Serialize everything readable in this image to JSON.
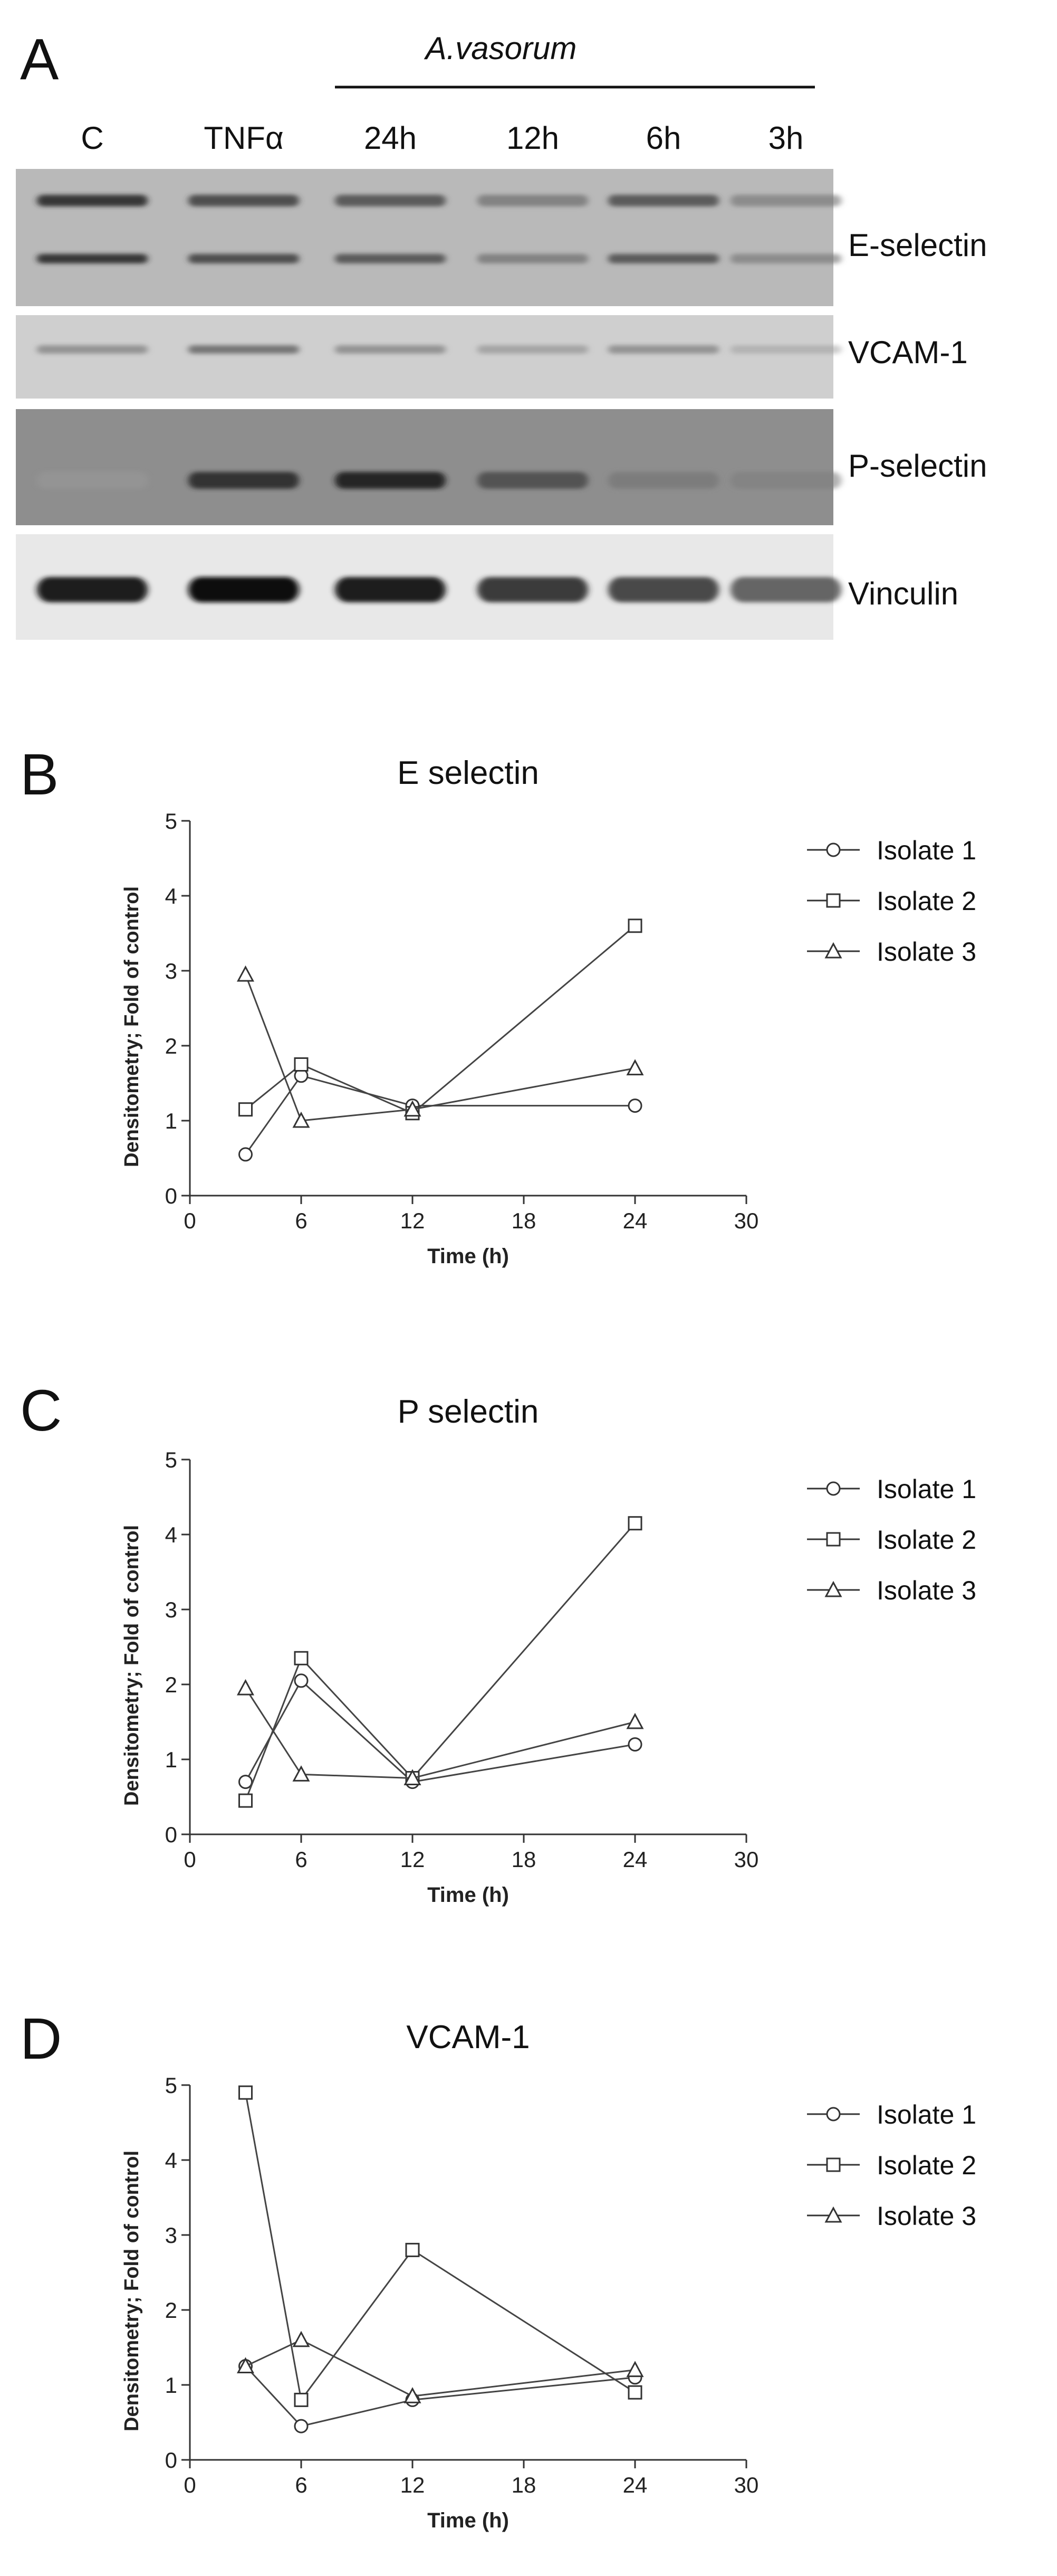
{
  "panel_a": {
    "letter": "A",
    "treatment_label": "A.vasorum",
    "lanes": [
      "C",
      "TNFα",
      "24h",
      "12h",
      "6h",
      "3h"
    ],
    "blots": [
      {
        "name": "E-selectin",
        "intensity": [
          0.85,
          0.75,
          0.7,
          0.5,
          0.7,
          0.45
        ]
      },
      {
        "name": "VCAM-1",
        "intensity": [
          0.45,
          0.6,
          0.45,
          0.35,
          0.45,
          0.25
        ]
      },
      {
        "name": "P-selectin",
        "intensity": [
          0.25,
          0.85,
          0.9,
          0.7,
          0.45,
          0.4
        ]
      },
      {
        "name": "Vinculin",
        "intensity": [
          0.95,
          1.0,
          0.95,
          0.85,
          0.8,
          0.7
        ]
      }
    ]
  },
  "chart_data": [
    {
      "type": "line",
      "panel": "B",
      "title": "E selectin",
      "xlabel": "Time (h)",
      "ylabel": "Densitometry; Fold of control",
      "xlim": [
        0,
        30
      ],
      "ylim": [
        0,
        5
      ],
      "xticks": [
        "0",
        "6",
        "12",
        "18",
        "24",
        "30"
      ],
      "yticks": [
        "0",
        "1",
        "2",
        "3",
        "4",
        "5"
      ],
      "legend_position": "right",
      "x": [
        3,
        6,
        12,
        24
      ],
      "series": [
        {
          "name": "Isolate 1",
          "marker": "circle",
          "values": [
            0.55,
            1.6,
            1.2,
            1.2
          ]
        },
        {
          "name": "Isolate 2",
          "marker": "square",
          "values": [
            1.15,
            1.75,
            1.1,
            3.6
          ]
        },
        {
          "name": "Isolate 3",
          "marker": "triangle",
          "values": [
            2.95,
            1.0,
            1.15,
            1.7
          ]
        }
      ]
    },
    {
      "type": "line",
      "panel": "C",
      "title": "P selectin",
      "xlabel": "Time (h)",
      "ylabel": "Densitometry; Fold of control",
      "xlim": [
        0,
        30
      ],
      "ylim": [
        0,
        5
      ],
      "xticks": [
        "0",
        "6",
        "12",
        "18",
        "24",
        "30"
      ],
      "yticks": [
        "0",
        "1",
        "2",
        "3",
        "4",
        "5"
      ],
      "legend_position": "right",
      "x": [
        3,
        6,
        12,
        24
      ],
      "series": [
        {
          "name": "Isolate 1",
          "marker": "circle",
          "values": [
            0.7,
            2.05,
            0.7,
            1.2
          ]
        },
        {
          "name": "Isolate 2",
          "marker": "square",
          "values": [
            0.45,
            2.35,
            0.75,
            4.15
          ]
        },
        {
          "name": "Isolate 3",
          "marker": "triangle",
          "values": [
            1.95,
            0.8,
            0.75,
            1.5
          ]
        }
      ]
    },
    {
      "type": "line",
      "panel": "D",
      "title": "VCAM-1",
      "xlabel": "Time (h)",
      "ylabel": "Densitometry; Fold of control",
      "xlim": [
        0,
        30
      ],
      "ylim": [
        0,
        5
      ],
      "xticks": [
        "0",
        "6",
        "12",
        "18",
        "24",
        "30"
      ],
      "yticks": [
        "0",
        "1",
        "2",
        "3",
        "4",
        "5"
      ],
      "legend_position": "right",
      "x": [
        3,
        6,
        12,
        24
      ],
      "series": [
        {
          "name": "Isolate 1",
          "marker": "circle",
          "values": [
            1.25,
            0.45,
            0.8,
            1.1
          ]
        },
        {
          "name": "Isolate 2",
          "marker": "square",
          "values": [
            4.9,
            0.8,
            2.8,
            0.9
          ]
        },
        {
          "name": "Isolate 3",
          "marker": "triangle",
          "values": [
            1.25,
            1.6,
            0.85,
            1.2
          ]
        }
      ]
    }
  ]
}
